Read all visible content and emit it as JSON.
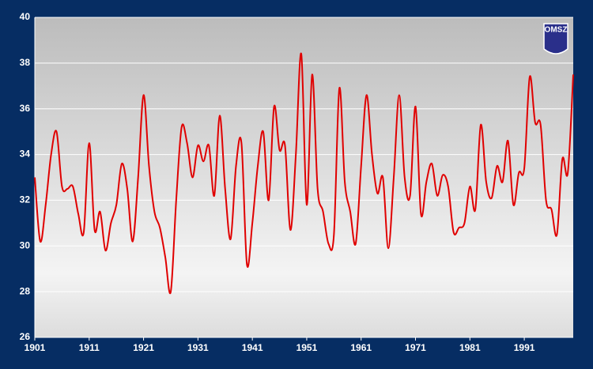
{
  "chart_data": {
    "type": "line",
    "annotation": "OMSZ",
    "x": [
      1901,
      1902,
      1903,
      1904,
      1905,
      1906,
      1907,
      1908,
      1909,
      1910,
      1911,
      1912,
      1913,
      1914,
      1915,
      1916,
      1917,
      1918,
      1919,
      1920,
      1921,
      1922,
      1923,
      1924,
      1925,
      1926,
      1927,
      1928,
      1929,
      1930,
      1931,
      1932,
      1933,
      1934,
      1935,
      1936,
      1937,
      1938,
      1939,
      1940,
      1941,
      1942,
      1943,
      1944,
      1945,
      1946,
      1947,
      1948,
      1949,
      1950,
      1951,
      1952,
      1953,
      1954,
      1955,
      1956,
      1957,
      1958,
      1959,
      1960,
      1961,
      1962,
      1963,
      1964,
      1965,
      1966,
      1967,
      1968,
      1969,
      1970,
      1971,
      1972,
      1973,
      1974,
      1975,
      1976,
      1977,
      1978,
      1979,
      1980,
      1981,
      1982,
      1983,
      1984,
      1985,
      1986,
      1987,
      1988,
      1989,
      1990,
      1991,
      1992,
      1993,
      1994,
      1995,
      1996,
      1997,
      1998,
      1999,
      2000
    ],
    "series": [
      {
        "color": "#e00000",
        "values": [
          33.0,
          30.2,
          31.8,
          34.0,
          35.0,
          32.6,
          32.5,
          32.6,
          31.4,
          30.6,
          34.5,
          30.7,
          31.5,
          29.8,
          31.0,
          31.8,
          33.6,
          32.5,
          30.2,
          33.0,
          36.6,
          33.5,
          31.5,
          30.8,
          29.5,
          28.0,
          32.0,
          35.2,
          34.5,
          33.0,
          34.4,
          33.7,
          34.4,
          32.2,
          35.7,
          32.5,
          30.3,
          33.5,
          34.5,
          29.2,
          31.0,
          33.5,
          35.0,
          32.0,
          36.1,
          34.2,
          34.4,
          30.7,
          34.0,
          38.4,
          31.8,
          37.5,
          32.5,
          31.5,
          30.1,
          30.5,
          36.9,
          32.8,
          31.5,
          30.1,
          33.5,
          36.6,
          34.0,
          32.3,
          33.0,
          29.9,
          33.0,
          36.6,
          33.0,
          32.2,
          36.1,
          31.4,
          32.8,
          33.6,
          32.2,
          33.1,
          32.6,
          30.6,
          30.8,
          31.0,
          32.6,
          31.6,
          35.3,
          32.8,
          32.1,
          33.5,
          32.8,
          34.6,
          31.8,
          33.2,
          33.4,
          37.4,
          35.4,
          35.3,
          32.0,
          31.6,
          30.5,
          33.8,
          33.2,
          37.5
        ]
      }
    ],
    "xlim": [
      1901,
      2000
    ],
    "xticks": [
      1901,
      1911,
      1921,
      1931,
      1941,
      1951,
      1961,
      1971,
      1981,
      1991
    ],
    "ylim": [
      26,
      40
    ],
    "yticks": [
      26,
      28,
      30,
      32,
      34,
      36,
      38,
      40
    ],
    "grid": true
  }
}
